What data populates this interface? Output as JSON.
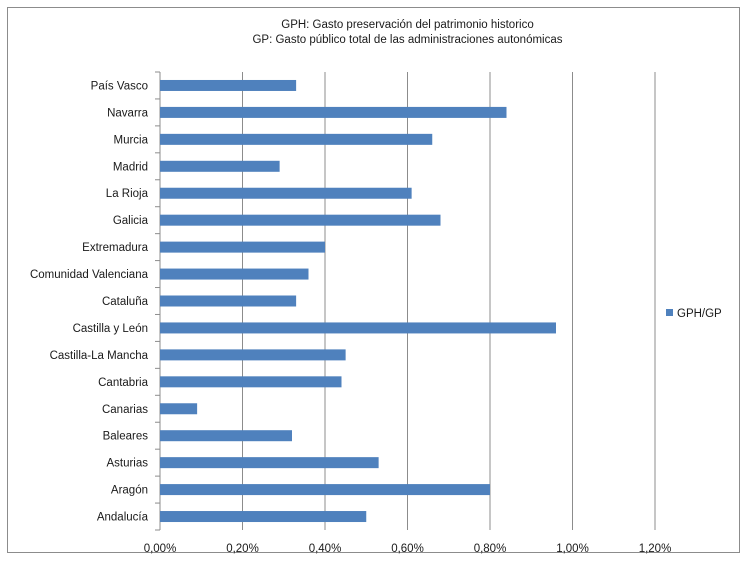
{
  "chart_data": {
    "type": "bar",
    "orientation": "horizontal",
    "title": "GPH: Gasto  preservación del patrimonio  historico",
    "subtitle": "GP: Gasto público total  de las administraciones autonómicas",
    "categories": [
      "País Vasco",
      "Navarra",
      "Murcia",
      "Madrid",
      "La Rioja",
      "Galicia",
      "Extremadura",
      "Comunidad Valenciana",
      "Cataluña",
      "Castilla y León",
      "Castilla-La Mancha",
      "Cantabria",
      "Canarias",
      "Baleares",
      "Asturias",
      "Aragón",
      "Andalucía"
    ],
    "series": [
      {
        "name": "GPH/GP",
        "color": "#4f81bd",
        "values": [
          0.33,
          0.84,
          0.66,
          0.29,
          0.61,
          0.68,
          0.4,
          0.36,
          0.33,
          0.96,
          0.45,
          0.44,
          0.09,
          0.32,
          0.53,
          0.8,
          0.5
        ]
      }
    ],
    "xlim": [
      0,
      1.2
    ],
    "xticks": [
      "0,00%",
      "0,20%",
      "0,40%",
      "0,60%",
      "0,80%",
      "1,00%",
      "1,20%"
    ],
    "grid": true,
    "legend": "right"
  }
}
